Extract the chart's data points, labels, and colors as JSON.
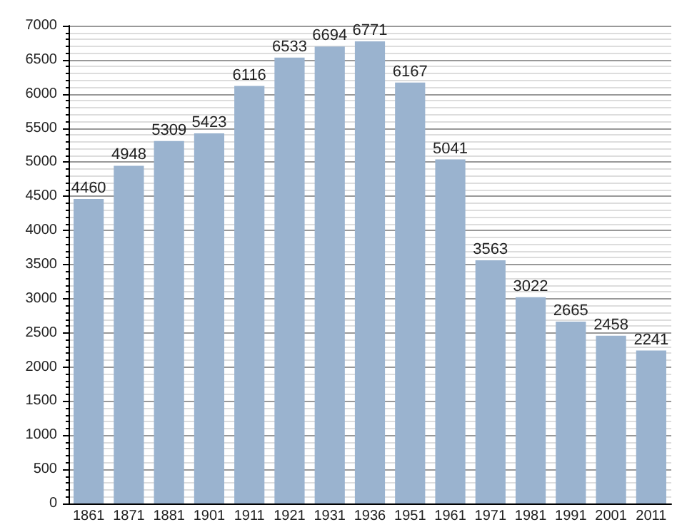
{
  "chart_data": {
    "type": "bar",
    "categories": [
      "1861",
      "1871",
      "1881",
      "1901",
      "1911",
      "1921",
      "1931",
      "1936",
      "1951",
      "1961",
      "1971",
      "1981",
      "1991",
      "2001",
      "2011"
    ],
    "values": [
      4460,
      4948,
      5309,
      5423,
      6116,
      6533,
      6694,
      6771,
      6167,
      5041,
      3563,
      3022,
      2665,
      2458,
      2241
    ],
    "color": "#9ab3cf",
    "ylim": [
      0,
      7000
    ],
    "yticks": [
      0,
      500,
      1000,
      1500,
      2000,
      2500,
      3000,
      3500,
      4000,
      4500,
      5000,
      5500,
      6000,
      6500,
      7000
    ],
    "grid": "y",
    "data_labels": true
  }
}
